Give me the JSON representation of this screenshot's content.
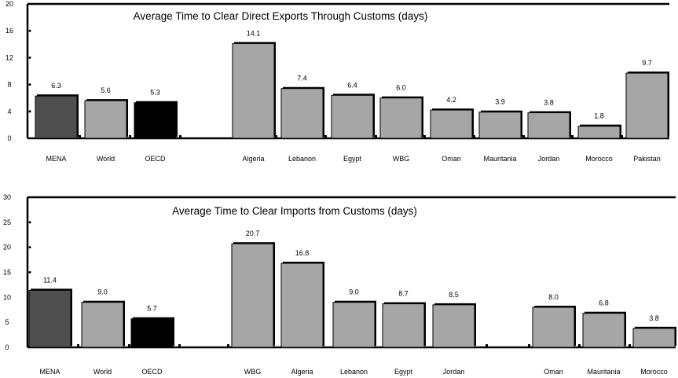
{
  "colors": {
    "MENA": "#4f4f4f",
    "OECD": "#000000",
    "default": "#a6a6a6",
    "outline": "#000000"
  },
  "chart_data": [
    {
      "type": "bar",
      "title": "Average Time to Clear Direct Exports Through Customs (days)",
      "xlabel": "",
      "ylabel": "",
      "ylim": [
        0,
        20
      ],
      "yticks": [
        "0",
        "4",
        "8",
        "12",
        "16",
        "20"
      ],
      "grid": false,
      "categories": [
        "MENA",
        "World",
        "OECD",
        "Algeria",
        "Lebanon",
        "Egypt",
        "WBG",
        "Oman",
        "Mauritania",
        "Jordan",
        "Morocco",
        "Pakistan"
      ],
      "values": [
        6.3,
        5.6,
        5.3,
        14.1,
        7.4,
        6.4,
        6.0,
        4.2,
        3.9,
        3.8,
        1.8,
        9.7
      ],
      "value_labels": [
        "6.3",
        "5.6",
        "5.3",
        "14.1",
        "7.4",
        "6.4",
        "6.0",
        "4.2",
        "3.9",
        "3.8",
        "1.8",
        "9.7"
      ]
    },
    {
      "type": "bar",
      "title": "Average Time to Clear Imports from Customs (days)",
      "xlabel": "",
      "ylabel": "",
      "ylim": [
        0,
        30
      ],
      "yticks": [
        "0",
        "5",
        "10",
        "15",
        "20",
        "25",
        "30"
      ],
      "grid": false,
      "categories": [
        "MENA",
        "World",
        "OECD",
        "WBG",
        "Algeria",
        "Lebanon",
        "Egypt",
        "Jordan",
        "Oman",
        "Mauritania",
        "Morocco"
      ],
      "values": [
        11.4,
        9.0,
        5.7,
        20.7,
        16.8,
        9.0,
        8.7,
        8.5,
        8.0,
        6.8,
        3.8
      ],
      "value_labels": [
        "11.4",
        "9.0",
        "5.7",
        "20.7",
        "16.8",
        "9.0",
        "8.7",
        "8.5",
        "8.0",
        "6.8",
        "3.8"
      ]
    }
  ]
}
